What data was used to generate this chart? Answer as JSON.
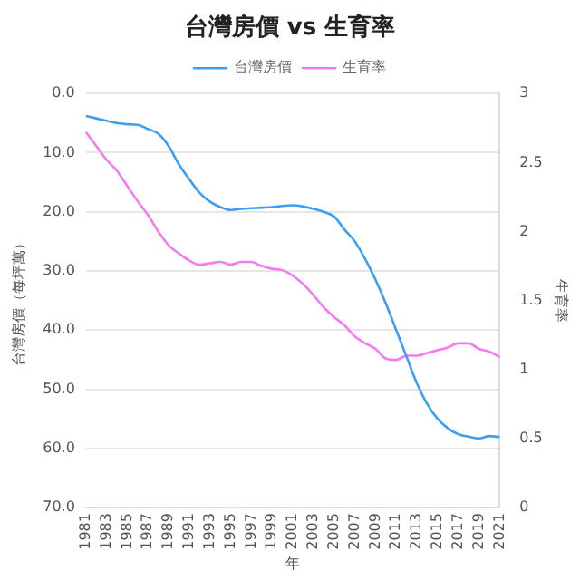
{
  "chart_data": {
    "type": "line",
    "title": "台灣房價 vs 生育率",
    "categories": [
      "1981",
      null,
      "1983",
      null,
      "1985",
      null,
      "1987",
      null,
      "1989",
      null,
      "1991",
      null,
      "1993",
      null,
      "1995",
      null,
      "1997",
      null,
      "1999",
      null,
      "2001",
      null,
      "2003",
      null,
      "2005",
      null,
      "2007",
      null,
      "2009",
      null,
      "2011",
      null,
      "2013",
      null,
      "2015",
      null,
      "2017",
      null,
      "2019",
      null,
      "2021"
    ],
    "series": [
      {
        "name": "台灣房價",
        "color": "#3d9df3",
        "values": [
          3.8,
          4.2,
          4.6,
          5.0,
          5.2,
          5.3,
          6.0,
          6.8,
          8.9,
          12.0,
          14.5,
          16.8,
          18.3,
          19.2,
          19.7,
          19.5,
          19.4,
          19.3,
          19.2,
          19.0,
          18.9,
          19.1,
          19.5,
          20.0,
          20.8,
          23.0,
          25.0,
          28.0,
          31.5,
          35.5,
          40.0,
          44.5,
          49.0,
          52.5,
          55.0,
          56.6,
          57.6,
          58.0,
          58.3,
          57.9,
          58.1
        ]
      },
      {
        "name": "生育率",
        "color": "#f57af0",
        "axis": "y2",
        "values": [
          2.72,
          2.62,
          2.52,
          2.44,
          2.33,
          2.22,
          2.12,
          2.0,
          1.9,
          1.84,
          1.79,
          1.76,
          1.77,
          1.78,
          1.76,
          1.78,
          1.78,
          1.75,
          1.73,
          1.72,
          1.68,
          1.62,
          1.54,
          1.45,
          1.38,
          1.32,
          1.24,
          1.19,
          1.15,
          1.08,
          1.07,
          1.1,
          1.1,
          1.12,
          1.14,
          1.16,
          1.19,
          1.19,
          1.15,
          1.13,
          1.09
        ]
      }
    ],
    "xlabel": "年",
    "ylabel": "台灣房價（每坪萬）",
    "y2label": "生育率",
    "ylim": [
      70,
      0
    ],
    "yticks": [
      {
        "value": 0,
        "label": "0.0"
      },
      {
        "value": 10,
        "label": "10.0"
      },
      {
        "value": 20,
        "label": "20.0"
      },
      {
        "value": 30,
        "label": "30.0"
      },
      {
        "value": 40,
        "label": "40.0"
      },
      {
        "value": 50,
        "label": "50.0"
      },
      {
        "value": 60,
        "label": "60.0"
      },
      {
        "value": 70,
        "label": "70.0"
      }
    ],
    "y2lim": [
      0,
      3
    ],
    "y2ticks": [
      0,
      0.5,
      1,
      1.5,
      2,
      2.5,
      3
    ],
    "grid": "y",
    "legend": "top",
    "marker": "none",
    "line_style": "solid"
  }
}
